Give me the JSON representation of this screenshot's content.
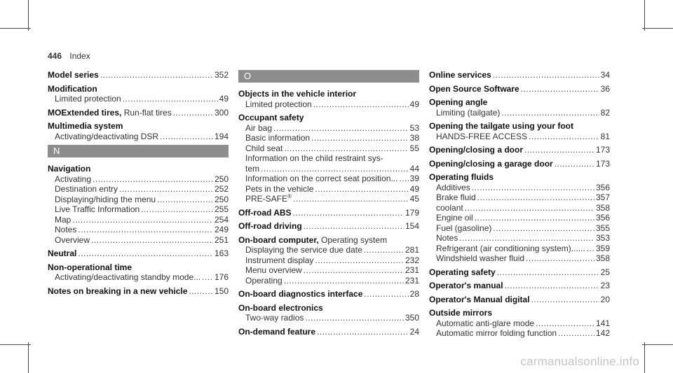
{
  "page": {
    "number": "446",
    "section": "Index"
  },
  "col1": {
    "model_series": {
      "title": "Model series",
      "page": "352"
    },
    "modification": {
      "title": "Modification",
      "sub1": {
        "text": "Limited protection",
        "page": "49"
      }
    },
    "moextended": {
      "title": "MOExtended tires,",
      "text": " Run-flat tires",
      "page": "300"
    },
    "multimedia": {
      "title": "Multimedia system",
      "sub1": {
        "text": "Activating/deactivating DSR",
        "page": "194"
      }
    },
    "n_letter": "N",
    "navigation": {
      "title": "Navigation",
      "items": [
        {
          "text": "Activating",
          "page": "250"
        },
        {
          "text": "Destination entry",
          "page": "252"
        },
        {
          "text": "Displaying/hiding the menu",
          "page": "250"
        },
        {
          "text": "Live Traffic Information",
          "page": "255"
        },
        {
          "text": "Map",
          "page": "254"
        },
        {
          "text": "Notes",
          "page": "249"
        },
        {
          "text": "Overview",
          "page": "251"
        }
      ]
    },
    "neutral": {
      "title": "Neutral",
      "page": "163"
    },
    "nonop": {
      "title": "Non-operational time",
      "sub1": {
        "text": "Activating/deactivating standby mode...",
        "page": "176"
      }
    },
    "notes_breaking": {
      "title": "Notes on breaking in a new vehicle",
      "page": "150"
    }
  },
  "col2": {
    "o_letter": "O",
    "objects": {
      "title": "Objects in the vehicle interior",
      "sub1": {
        "text": "Limited protection",
        "page": "49"
      }
    },
    "occupant": {
      "title": "Occupant safety",
      "items": [
        {
          "text": "Air bag",
          "page": "53"
        },
        {
          "text": "Basic information",
          "page": "38"
        },
        {
          "text": "Child seat",
          "page": "55"
        }
      ],
      "info_line1": "Information on the child restraint sys-",
      "info_line2": {
        "text": "tem",
        "page": "44"
      },
      "items2": [
        {
          "text": "Information on the correct seat position...",
          "page": "39"
        },
        {
          "text": "Pets in the vehicle",
          "page": "49"
        }
      ],
      "presafe": {
        "text": "PRE-SAFE",
        "sup": "®",
        "page": "45"
      }
    },
    "offroad_abs": {
      "title": "Off-road ABS",
      "page": "179"
    },
    "offroad_driving": {
      "title": "Off-road driving",
      "page": "154"
    },
    "onboard_computer": {
      "title": "On-board computer,",
      "inline": " Operating system",
      "items": [
        {
          "text": "Displaying the service due date",
          "page": "281"
        },
        {
          "text": "Instrument display",
          "page": "232"
        },
        {
          "text": "Menu overview",
          "page": "231"
        },
        {
          "text": "Operating",
          "page": "231"
        }
      ]
    },
    "onboard_diag": {
      "title": "On-board diagnostics interface",
      "page": "28"
    },
    "onboard_elec": {
      "title": "On-board electronics",
      "sub1": {
        "text": "Two-way radios",
        "page": "350"
      }
    },
    "ondemand": {
      "title": "On-demand feature",
      "page": "24"
    }
  },
  "col3": {
    "online": {
      "title": "Online services",
      "page": "34"
    },
    "opensource": {
      "title": "Open Source Software",
      "page": "36"
    },
    "opening_angle": {
      "title": "Opening angle",
      "sub1": {
        "text": "Limiting (tailgate)",
        "page": "82"
      }
    },
    "opening_tailgate": {
      "title": "Opening the tailgate using your foot",
      "sub1": {
        "text": "HANDS-FREE ACCESS",
        "page": "81"
      }
    },
    "opening_door": {
      "title": "Opening/closing a door",
      "page": "173"
    },
    "opening_garage": {
      "title": "Opening/closing a garage door",
      "page": "173"
    },
    "operating_fluids": {
      "title": "Operating fluids",
      "items": [
        {
          "text": "Additives",
          "page": "356"
        },
        {
          "text": "Brake fluid",
          "page": "357"
        },
        {
          "text": "coolant",
          "page": "358"
        },
        {
          "text": "Engine oil",
          "page": "356"
        },
        {
          "text": "Fuel (gasoline)",
          "page": "355"
        },
        {
          "text": "Notes",
          "page": "353"
        },
        {
          "text": "Refrigerant (air conditioning system)......",
          "page": "359"
        },
        {
          "text": "Windshield washer fluid",
          "page": "358"
        }
      ]
    },
    "operating_safety": {
      "title": "Operating safety",
      "page": "25"
    },
    "operators_manual": {
      "title": "Operator's manual",
      "page": "23"
    },
    "operators_digital": {
      "title": "Operator's Manual digital",
      "page": "20"
    },
    "outside_mirrors": {
      "title": "Outside mirrors",
      "items": [
        {
          "text": "Automatic anti-glare mode",
          "page": "141"
        },
        {
          "text": "Automatic mirror folding function",
          "page": "142"
        }
      ]
    }
  },
  "watermark": "carmanualsonline.info"
}
